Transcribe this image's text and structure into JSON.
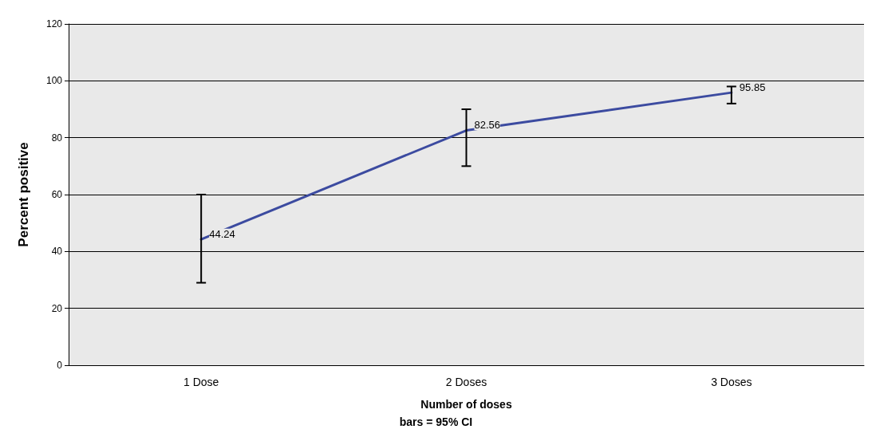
{
  "chart_data": {
    "type": "line",
    "xlabel": "Number of doses",
    "ylabel": "Percent positive",
    "annotations": [
      "bars = 95% CI"
    ],
    "categories": [
      "1 Dose",
      "2 Doses",
      "3 Doses"
    ],
    "series": [
      {
        "color": "#3c4ba0",
        "values": [
          44.24,
          82.56,
          95.85
        ],
        "errors": [
          [
            29,
            60
          ],
          [
            70,
            90
          ],
          [
            92,
            98
          ]
        ]
      }
    ],
    "ylim": [
      0,
      120
    ],
    "yticks": [
      0,
      20,
      40,
      60,
      80,
      100,
      120
    ],
    "grid": "y",
    "data_labels": true,
    "marker": "none",
    "line_style": "solid"
  }
}
